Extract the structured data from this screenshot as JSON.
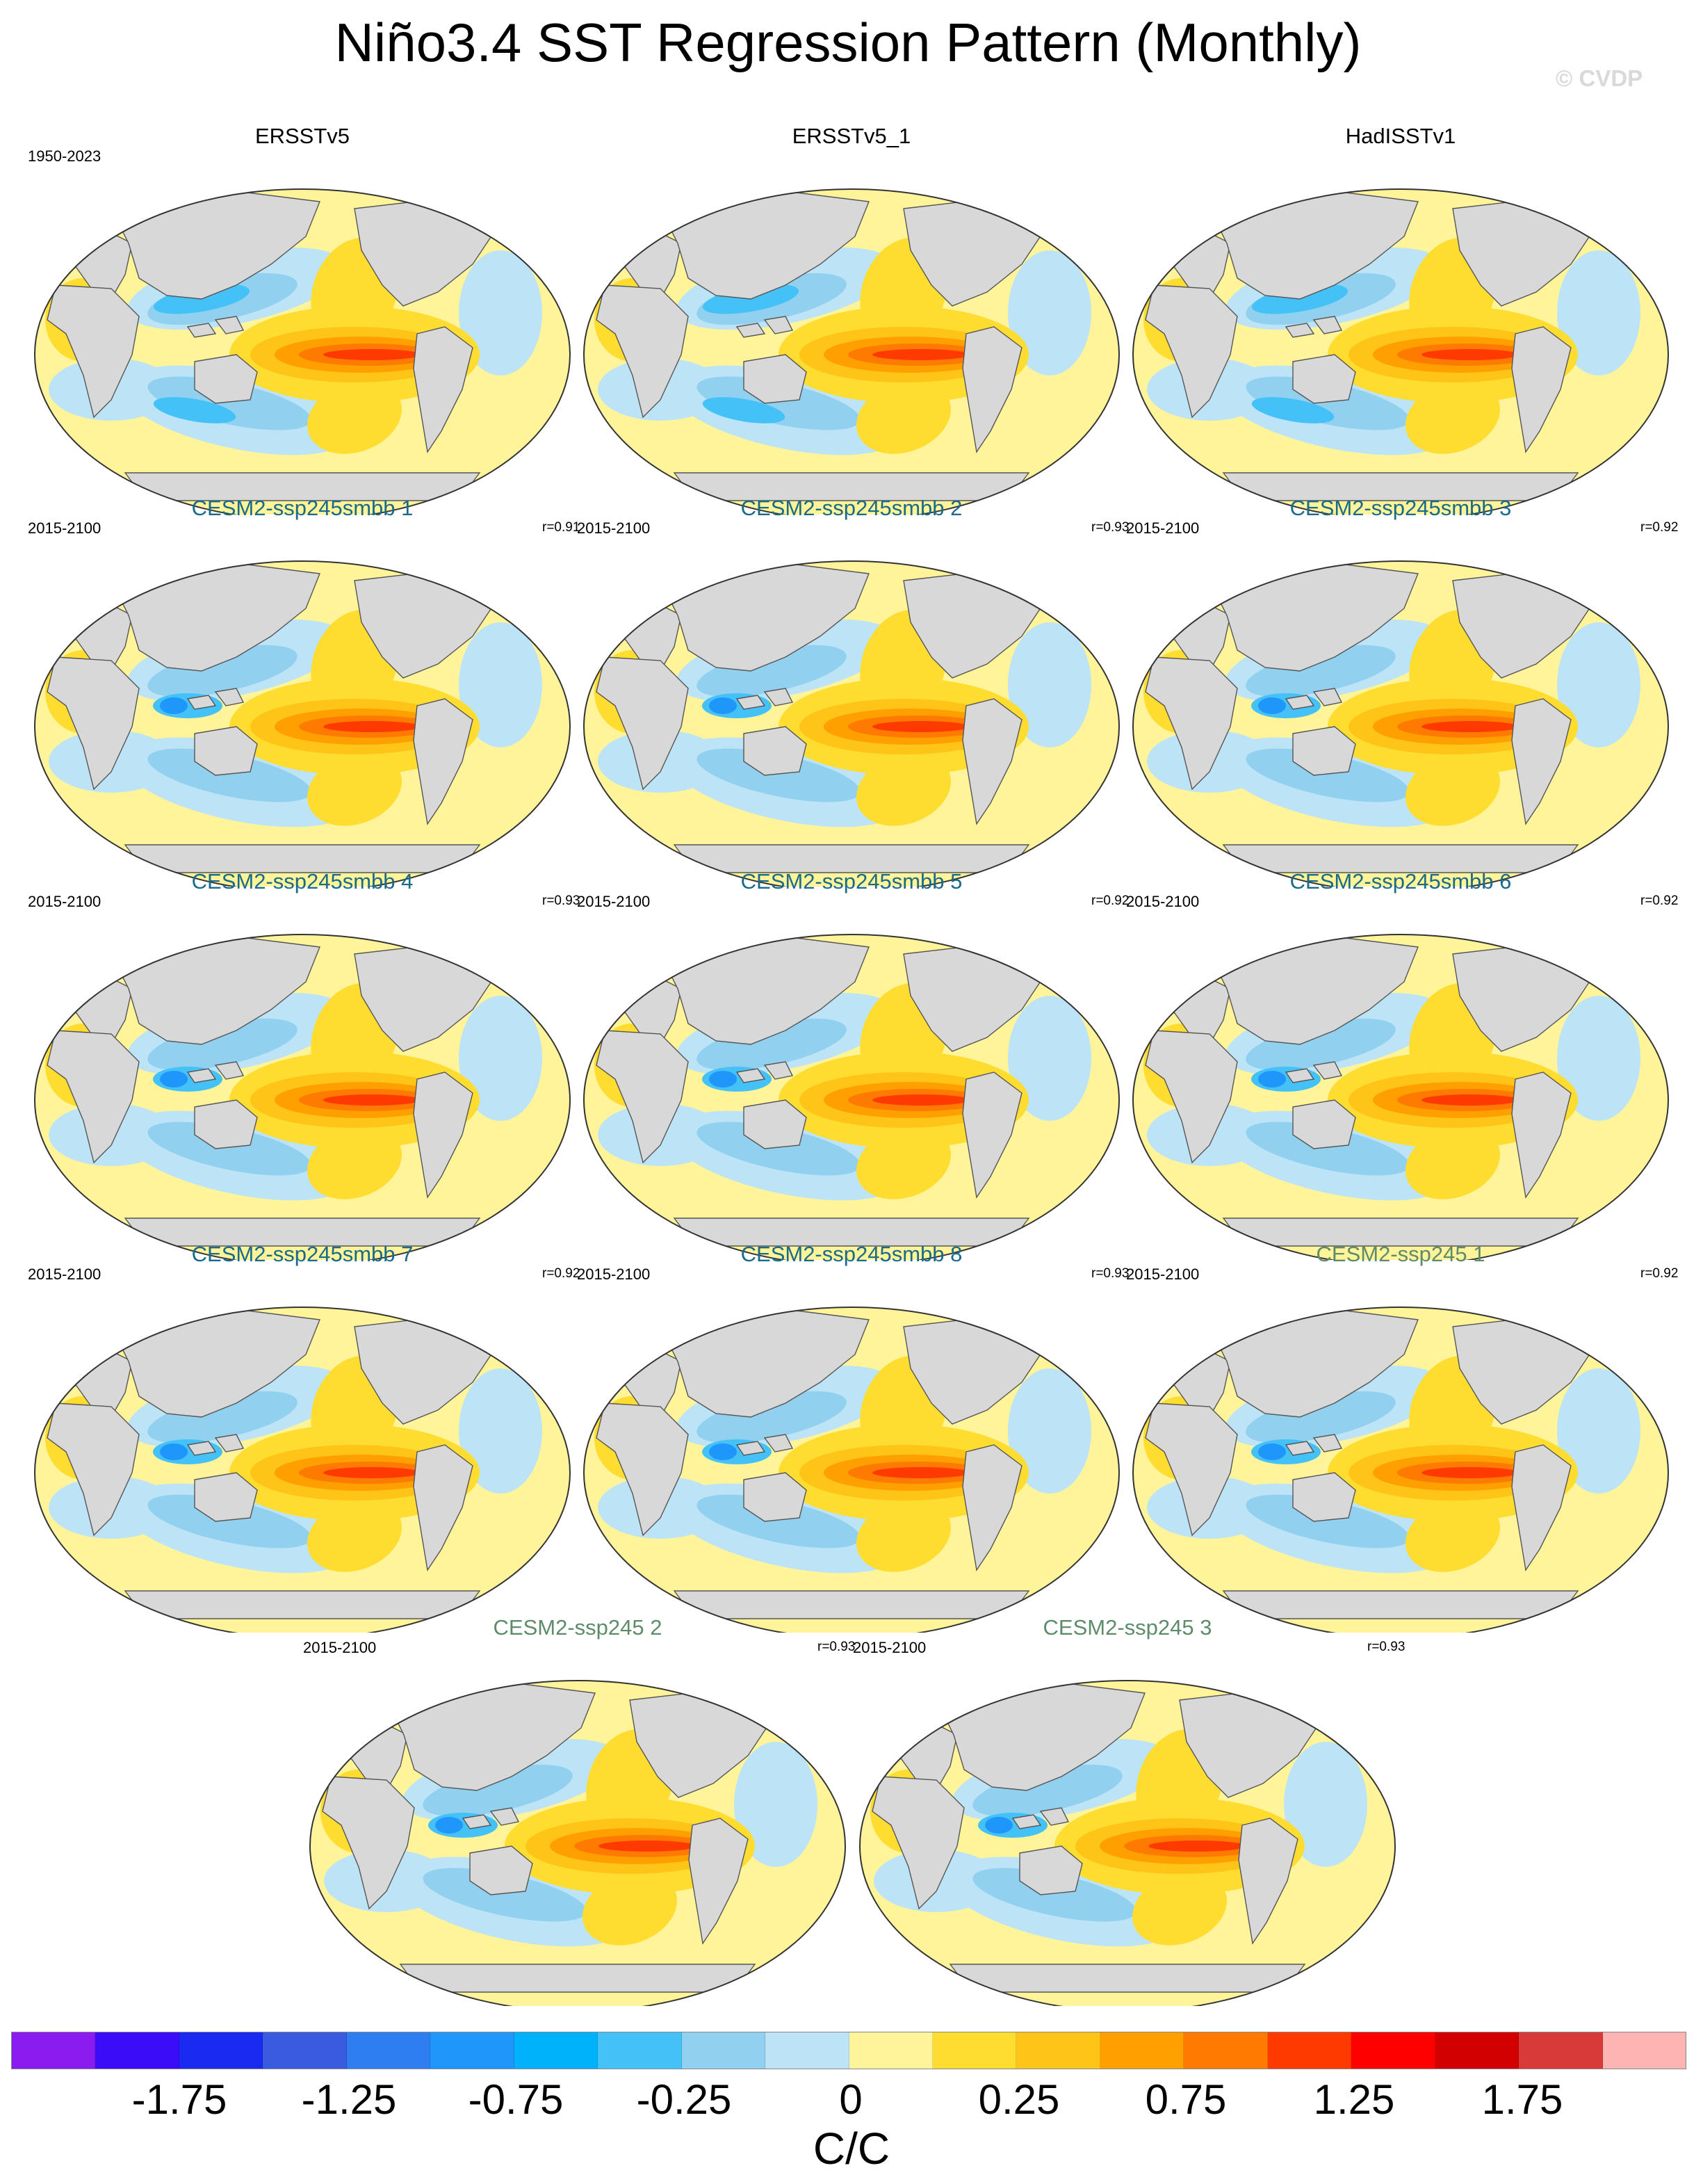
{
  "page": {
    "title": "Niño3.4 SST Regression Pattern (Monthly)",
    "watermark": "© CVDP"
  },
  "panels": [
    {
      "title": "ERSSTv5",
      "period": "1950-2023",
      "corr": "",
      "title_color": "#000000",
      "pattern": "obs1"
    },
    {
      "title": "ERSSTv5_1",
      "period": "",
      "corr": "",
      "title_color": "#000000",
      "pattern": "obs1"
    },
    {
      "title": "HadISSTv1",
      "period": "",
      "corr": "",
      "title_color": "#000000",
      "pattern": "obs2"
    },
    {
      "title": "CESM2-ssp245smbb 1",
      "period": "2015-2100",
      "corr": "r=0.91",
      "title_color": "#1a6a8a",
      "pattern": "model"
    },
    {
      "title": "CESM2-ssp245smbb 2",
      "period": "2015-2100",
      "corr": "r=0.93",
      "title_color": "#1a6a8a",
      "pattern": "model"
    },
    {
      "title": "CESM2-ssp245smbb 3",
      "period": "2015-2100",
      "corr": "r=0.92",
      "title_color": "#1a6a8a",
      "pattern": "model"
    },
    {
      "title": "CESM2-ssp245smbb 4",
      "period": "2015-2100",
      "corr": "r=0.93",
      "title_color": "#1a6a8a",
      "pattern": "model"
    },
    {
      "title": "CESM2-ssp245smbb 5",
      "period": "2015-2100",
      "corr": "r=0.92",
      "title_color": "#1a6a8a",
      "pattern": "model"
    },
    {
      "title": "CESM2-ssp245smbb 6",
      "period": "2015-2100",
      "corr": "r=0.92",
      "title_color": "#1a6a8a",
      "pattern": "model"
    },
    {
      "title": "CESM2-ssp245smbb 7",
      "period": "2015-2100",
      "corr": "r=0.92",
      "title_color": "#1a6a8a",
      "pattern": "model"
    },
    {
      "title": "CESM2-ssp245smbb 8",
      "period": "2015-2100",
      "corr": "r=0.93",
      "title_color": "#1a6a8a",
      "pattern": "model"
    },
    {
      "title": "CESM2-ssp245 1",
      "period": "2015-2100",
      "corr": "r=0.92",
      "title_color": "#5e8c6a",
      "pattern": "model"
    },
    {
      "title": "CESM2-ssp245 2",
      "period": "2015-2100",
      "corr": "r=0.93",
      "title_color": "#5e8c6a",
      "pattern": "model"
    },
    {
      "title": "CESM2-ssp245 3",
      "period": "2015-2100",
      "corr": "r=0.93",
      "title_color": "#5e8c6a",
      "pattern": "model"
    }
  ],
  "colorbar": {
    "colors": [
      "#8a1cf0",
      "#3a0cf8",
      "#1a2af0",
      "#3a5ae0",
      "#2e7ef2",
      "#1e96fa",
      "#00b2fa",
      "#44c2f8",
      "#92d0f0",
      "#bde4f6",
      "#fff49a",
      "#ffdc30",
      "#ffc418",
      "#ffa000",
      "#ff7a00",
      "#ff3a00",
      "#ff0000",
      "#d20000",
      "#d83a3a",
      "#ffb4b4"
    ],
    "labels": [
      "-1.75",
      "-1.25",
      "-0.75",
      "-0.25",
      "0",
      "0.25",
      "0.75",
      "1.25",
      "1.75"
    ],
    "units": "C/C"
  }
}
